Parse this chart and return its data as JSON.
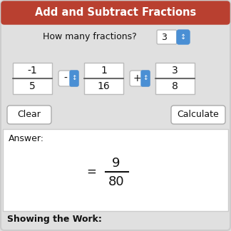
{
  "title": "Add and Subtract Fractions",
  "title_bg": "#B94030",
  "title_text_color": "#FFFFFF",
  "bg_color": "#E0E0E0",
  "label_fractions": "How many fractions?",
  "spinner_value": "3",
  "frac1_num": "-1",
  "frac1_den": "5",
  "op1": "-",
  "frac2_num": "1",
  "frac2_den": "16",
  "op2": "+",
  "frac3_num": "3",
  "frac3_den": "8",
  "answer_label": "Answer:",
  "answer_num": "9",
  "answer_den": "80",
  "showing_work": "Showing the Work:",
  "btn_clear": "Clear",
  "btn_calc": "Calculate",
  "box_bg": "#FFFFFF",
  "box_border": "#BBBBBB",
  "btn_border": "#AAAAAA",
  "spinner_blue": "#4A8FD4",
  "answer_box_bg": "#FFFFFF",
  "answer_box_border": "#CCCCCC",
  "outer_border": "#CCCCCC"
}
